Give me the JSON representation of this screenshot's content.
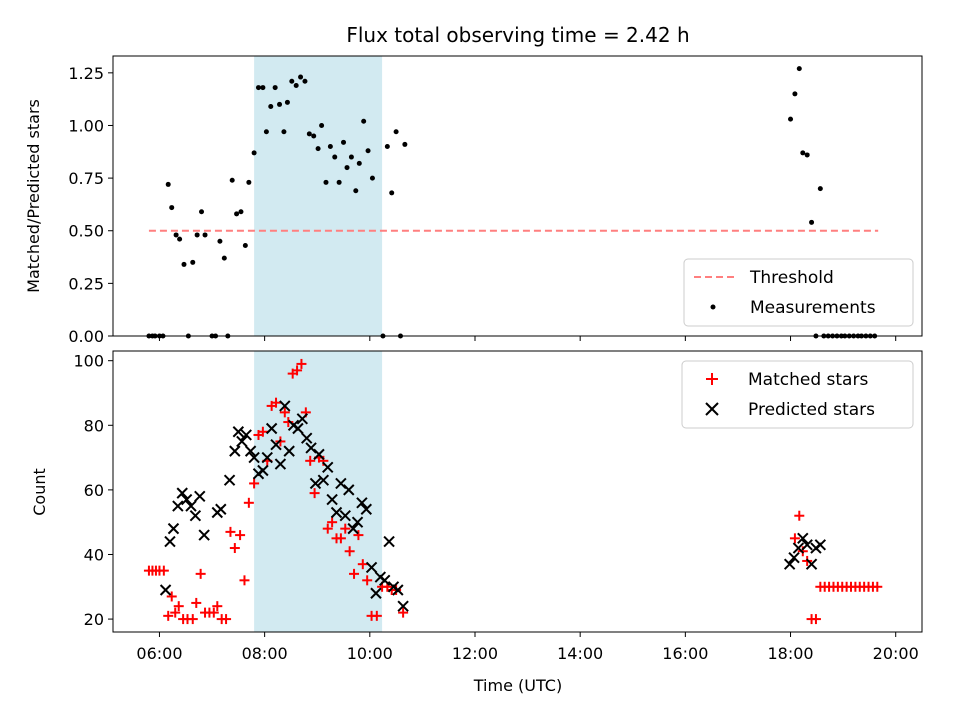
{
  "chart_data": [
    {
      "type": "scatter",
      "title": "Flux total observing time = 2.42 h",
      "xlabel": "",
      "ylabel": "Matched/Predicted stars",
      "xlim": [
        "05:07",
        "20:30"
      ],
      "ylim": [
        0,
        1.33
      ],
      "yticks": [
        "0.00",
        "0.25",
        "0.50",
        "0.75",
        "1.00",
        "1.25"
      ],
      "xticks": [
        "06:00",
        "08:00",
        "10:00",
        "12:00",
        "14:00",
        "16:00",
        "18:00",
        "20:00"
      ],
      "shaded_interval": [
        "07:48",
        "10:14"
      ],
      "shaded_color": "#add8e6",
      "legend_position": "lower right",
      "threshold": {
        "name": "Threshold",
        "value": 0.5,
        "x_range": [
          "05:48",
          "19:40"
        ],
        "color": "#ff7f7f"
      },
      "series": [
        {
          "name": "Measurements",
          "color": "#000000",
          "points": [
            [
              "05:48",
              0
            ],
            [
              "05:52",
              0
            ],
            [
              "05:55",
              0
            ],
            [
              "06:00",
              0
            ],
            [
              "06:04",
              0
            ],
            [
              "06:10",
              0.72
            ],
            [
              "06:14",
              0.61
            ],
            [
              "06:19",
              0.48
            ],
            [
              "06:23",
              0.46
            ],
            [
              "06:28",
              0.34
            ],
            [
              "06:33",
              0
            ],
            [
              "06:38",
              0.35
            ],
            [
              "06:43",
              0.48
            ],
            [
              "06:48",
              0.59
            ],
            [
              "06:52",
              0.48
            ],
            [
              "07:00",
              0
            ],
            [
              "07:04",
              0
            ],
            [
              "07:09",
              0.45
            ],
            [
              "07:14",
              0.37
            ],
            [
              "07:18",
              0
            ],
            [
              "07:23",
              0.74
            ],
            [
              "07:28",
              0.58
            ],
            [
              "07:33",
              0.59
            ],
            [
              "07:38",
              0.43
            ],
            [
              "07:42",
              0.73
            ],
            [
              "07:48",
              0.87
            ],
            [
              "07:53",
              1.18
            ],
            [
              "07:58",
              1.18
            ],
            [
              "08:02",
              0.97
            ],
            [
              "08:07",
              1.09
            ],
            [
              "08:12",
              1.18
            ],
            [
              "08:17",
              1.1
            ],
            [
              "08:22",
              0.97
            ],
            [
              "08:26",
              1.11
            ],
            [
              "08:31",
              1.21
            ],
            [
              "08:36",
              1.19
            ],
            [
              "08:41",
              1.23
            ],
            [
              "08:46",
              1.21
            ],
            [
              "08:51",
              0.96
            ],
            [
              "08:56",
              0.95
            ],
            [
              "09:01",
              0.89
            ],
            [
              "09:05",
              1.0
            ],
            [
              "09:10",
              0.73
            ],
            [
              "09:15",
              0.9
            ],
            [
              "09:20",
              0.85
            ],
            [
              "09:25",
              0.73
            ],
            [
              "09:30",
              0.92
            ],
            [
              "09:34",
              0.8
            ],
            [
              "09:39",
              0.85
            ],
            [
              "09:44",
              0.69
            ],
            [
              "09:48",
              0.82
            ],
            [
              "09:53",
              1.02
            ],
            [
              "09:58",
              0.88
            ],
            [
              "10:03",
              0.75
            ],
            [
              "10:15",
              0
            ],
            [
              "10:20",
              0.9
            ],
            [
              "10:25",
              0.68
            ],
            [
              "10:30",
              0.97
            ],
            [
              "10:35",
              0
            ],
            [
              "10:40",
              0.91
            ],
            [
              "18:00",
              1.03
            ],
            [
              "18:05",
              1.15
            ],
            [
              "18:10",
              1.27
            ],
            [
              "18:14",
              0.87
            ],
            [
              "18:19",
              0.86
            ],
            [
              "18:24",
              0.54
            ],
            [
              "18:29",
              0
            ],
            [
              "18:34",
              0.7
            ],
            [
              "18:38",
              0
            ],
            [
              "18:43",
              0
            ],
            [
              "18:48",
              0
            ],
            [
              "18:53",
              0
            ],
            [
              "18:58",
              0
            ],
            [
              "19:02",
              0
            ],
            [
              "19:07",
              0
            ],
            [
              "19:12",
              0
            ],
            [
              "19:17",
              0
            ],
            [
              "19:21",
              0
            ],
            [
              "19:26",
              0
            ],
            [
              "19:31",
              0
            ],
            [
              "19:36",
              0
            ]
          ]
        }
      ]
    },
    {
      "type": "scatter",
      "title": "",
      "xlabel": "Time (UTC)",
      "ylabel": "Count",
      "xlim": [
        "05:07",
        "20:30"
      ],
      "ylim": [
        16,
        103
      ],
      "yticks": [
        "20",
        "40",
        "60",
        "80",
        "100"
      ],
      "xticks": [
        "06:00",
        "08:00",
        "10:00",
        "12:00",
        "14:00",
        "16:00",
        "18:00",
        "20:00"
      ],
      "shaded_interval": [
        "07:48",
        "10:14"
      ],
      "shaded_color": "#add8e6",
      "legend_position": "upper right",
      "series": [
        {
          "name": "Matched stars",
          "color": "#ff0000",
          "marker": "+",
          "points": [
            [
              "05:48",
              35
            ],
            [
              "05:52",
              35
            ],
            [
              "05:56",
              35
            ],
            [
              "06:00",
              35
            ],
            [
              "06:05",
              35
            ],
            [
              "06:10",
              21
            ],
            [
              "06:14",
              27
            ],
            [
              "06:18",
              22
            ],
            [
              "06:22",
              24
            ],
            [
              "06:27",
              20
            ],
            [
              "06:32",
              20
            ],
            [
              "06:38",
              20
            ],
            [
              "06:42",
              25
            ],
            [
              "06:47",
              34
            ],
            [
              "06:52",
              22
            ],
            [
              "06:57",
              22
            ],
            [
              "07:02",
              22
            ],
            [
              "07:06",
              24
            ],
            [
              "07:11",
              20
            ],
            [
              "07:16",
              20
            ],
            [
              "07:21",
              47
            ],
            [
              "07:26",
              42
            ],
            [
              "07:32",
              46
            ],
            [
              "07:37",
              32
            ],
            [
              "07:42",
              56
            ],
            [
              "07:48",
              62
            ],
            [
              "07:53",
              77
            ],
            [
              "07:58",
              78
            ],
            [
              "08:03",
              69
            ],
            [
              "08:08",
              86
            ],
            [
              "08:13",
              87
            ],
            [
              "08:18",
              75
            ],
            [
              "08:23",
              84
            ],
            [
              "08:27",
              81
            ],
            [
              "08:32",
              96
            ],
            [
              "08:37",
              97
            ],
            [
              "08:42",
              99
            ],
            [
              "08:47",
              84
            ],
            [
              "08:52",
              69
            ],
            [
              "08:57",
              59
            ],
            [
              "09:02",
              70
            ],
            [
              "09:07",
              69
            ],
            [
              "09:12",
              48
            ],
            [
              "09:17",
              50
            ],
            [
              "09:22",
              45
            ],
            [
              "09:27",
              45
            ],
            [
              "09:32",
              48
            ],
            [
              "09:37",
              41
            ],
            [
              "09:42",
              34
            ],
            [
              "09:47",
              46
            ],
            [
              "09:52",
              37
            ],
            [
              "09:57",
              32
            ],
            [
              "10:02",
              21
            ],
            [
              "10:08",
              21
            ],
            [
              "10:14",
              30
            ],
            [
              "10:20",
              30
            ],
            [
              "10:25",
              29
            ],
            [
              "10:30",
              29
            ],
            [
              "10:38",
              22
            ],
            [
              "18:05",
              45
            ],
            [
              "18:10",
              52
            ],
            [
              "18:14",
              41
            ],
            [
              "18:19",
              38
            ],
            [
              "18:24",
              20
            ],
            [
              "18:29",
              20
            ],
            [
              "18:34",
              30
            ],
            [
              "18:39",
              30
            ],
            [
              "18:44",
              30
            ],
            [
              "18:49",
              30
            ],
            [
              "18:54",
              30
            ],
            [
              "18:59",
              30
            ],
            [
              "19:04",
              30
            ],
            [
              "19:09",
              30
            ],
            [
              "19:14",
              30
            ],
            [
              "19:19",
              30
            ],
            [
              "19:24",
              30
            ],
            [
              "19:29",
              30
            ],
            [
              "19:34",
              30
            ],
            [
              "19:39",
              30
            ]
          ]
        },
        {
          "name": "Predicted stars",
          "color": "#000000",
          "marker": "x",
          "points": [
            [
              "06:07",
              29
            ],
            [
              "06:12",
              44
            ],
            [
              "06:16",
              48
            ],
            [
              "06:21",
              55
            ],
            [
              "06:26",
              59
            ],
            [
              "06:31",
              57
            ],
            [
              "06:36",
              55
            ],
            [
              "06:41",
              52
            ],
            [
              "06:46",
              58
            ],
            [
              "06:51",
              46
            ],
            [
              "07:06",
              53
            ],
            [
              "07:10",
              54
            ],
            [
              "07:20",
              63
            ],
            [
              "07:26",
              72
            ],
            [
              "07:30",
              78
            ],
            [
              "07:34",
              75
            ],
            [
              "07:39",
              77
            ],
            [
              "07:44",
              72
            ],
            [
              "07:48",
              70
            ],
            [
              "07:53",
              65
            ],
            [
              "07:58",
              66
            ],
            [
              "08:03",
              70
            ],
            [
              "08:08",
              79
            ],
            [
              "08:13",
              74
            ],
            [
              "08:18",
              68
            ],
            [
              "08:23",
              86
            ],
            [
              "08:28",
              72
            ],
            [
              "08:33",
              80
            ],
            [
              "08:38",
              79
            ],
            [
              "08:43",
              82
            ],
            [
              "08:48",
              76
            ],
            [
              "08:53",
              73
            ],
            [
              "08:58",
              62
            ],
            [
              "09:02",
              71
            ],
            [
              "09:07",
              63
            ],
            [
              "09:12",
              67
            ],
            [
              "09:17",
              57
            ],
            [
              "09:22",
              53
            ],
            [
              "09:27",
              62
            ],
            [
              "09:32",
              52
            ],
            [
              "09:36",
              60
            ],
            [
              "09:41",
              48
            ],
            [
              "09:46",
              50
            ],
            [
              "09:51",
              56
            ],
            [
              "09:56",
              54
            ],
            [
              "10:02",
              36
            ],
            [
              "10:07",
              28
            ],
            [
              "10:12",
              33
            ],
            [
              "10:17",
              32
            ],
            [
              "10:22",
              44
            ],
            [
              "10:27",
              30
            ],
            [
              "10:32",
              29
            ],
            [
              "10:38",
              24
            ],
            [
              "17:59",
              37
            ],
            [
              "18:04",
              39
            ],
            [
              "18:09",
              42
            ],
            [
              "18:14",
              45
            ],
            [
              "18:19",
              43
            ],
            [
              "18:24",
              37
            ],
            [
              "18:29",
              42
            ],
            [
              "18:34",
              43
            ]
          ]
        }
      ]
    }
  ]
}
